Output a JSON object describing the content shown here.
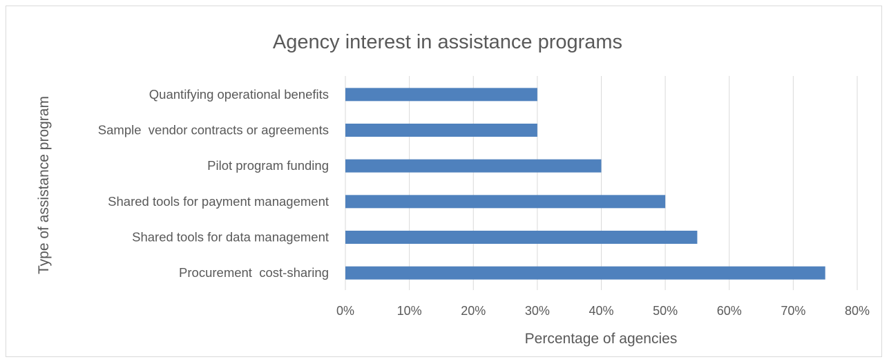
{
  "chart_data": {
    "type": "bar",
    "orientation": "horizontal",
    "title": "Agency interest in assistance programs",
    "xlabel": "Percentage of agencies",
    "ylabel": "Type of assistance program",
    "categories": [
      "Quantifying operational benefits",
      "Sample  vendor contracts or agreements",
      "Pilot program funding",
      "Shared tools for payment management",
      "Shared tools for data management",
      "Procurement  cost-sharing"
    ],
    "values": [
      30,
      30,
      40,
      50,
      55,
      75
    ],
    "xlim": [
      0,
      80
    ],
    "xticks": [
      "0%",
      "10%",
      "20%",
      "30%",
      "40%",
      "50%",
      "60%",
      "70%",
      "80%"
    ],
    "grid": "vertical",
    "legend": "none",
    "bar_color": "#4f81bd"
  }
}
